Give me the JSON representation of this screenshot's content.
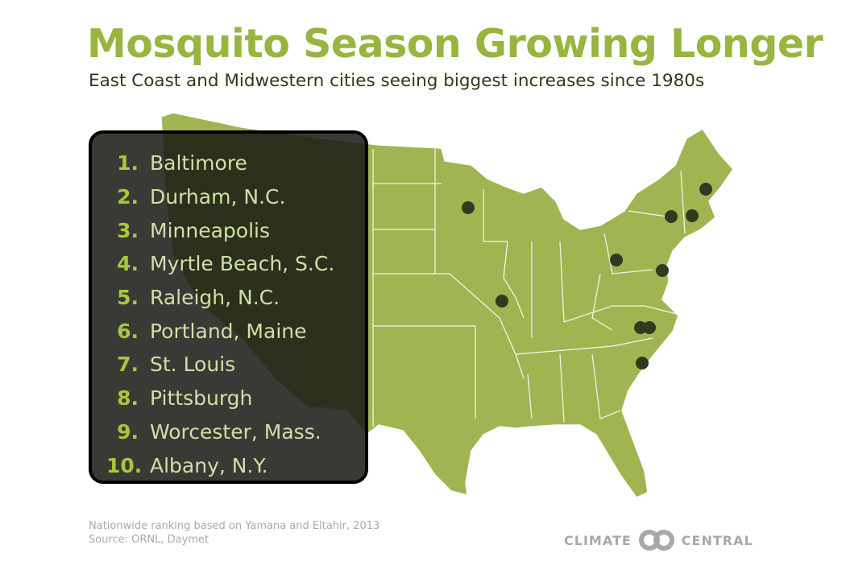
{
  "header": {
    "title": "Mosquito Season Growing Longer",
    "subtitle": "East Coast and Midwestern cities seeing biggest increases since 1980s"
  },
  "ranking": [
    {
      "rank": "1.",
      "city": "Baltimore"
    },
    {
      "rank": "2.",
      "city": "Durham, N.C."
    },
    {
      "rank": "3.",
      "city": "Minneapolis"
    },
    {
      "rank": "4.",
      "city": "Myrtle Beach, S.C."
    },
    {
      "rank": "5.",
      "city": "Raleigh, N.C."
    },
    {
      "rank": "6.",
      "city": "Portland, Maine"
    },
    {
      "rank": "7.",
      "city": "St. Louis"
    },
    {
      "rank": "8.",
      "city": "Pittsburgh"
    },
    {
      "rank": "9.",
      "city": "Worcester, Mass."
    },
    {
      "rank": "10.",
      "city": "Albany, N.Y."
    }
  ],
  "footer": {
    "note": "Nationwide ranking based on Yamana and Eltahir, 2013",
    "source": "Source: ORNL, Daymet"
  },
  "logo": {
    "left": "CLIMATE",
    "right": "CENTRAL"
  },
  "colors": {
    "title": "#97b53f",
    "map_fill": "#a0b552",
    "city_marker": "#2f3a1f",
    "rank_number": "#a7c83a",
    "panel": "#181814"
  }
}
